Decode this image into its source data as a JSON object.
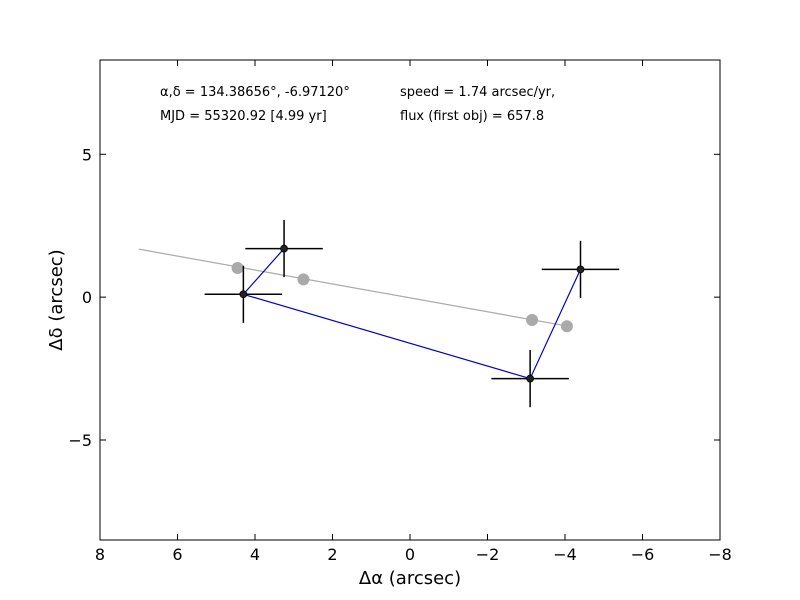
{
  "chart_data": {
    "type": "scatter",
    "xlabel": "Δα (arcsec)",
    "ylabel": "Δδ (arcsec)",
    "xlim": [
      8,
      -8
    ],
    "ylim": [
      -8.5,
      8.3
    ],
    "x_ticks": [
      8,
      6,
      4,
      2,
      0,
      -2,
      -4,
      -6,
      -8
    ],
    "x_tick_labels": [
      "8",
      "6",
      "4",
      "2",
      "0",
      "−2",
      "−4",
      "−6",
      "−8"
    ],
    "y_ticks": [
      5,
      0,
      -5
    ],
    "y_tick_labels": [
      "5",
      "0",
      "−5"
    ],
    "grid": false,
    "annotations": [
      "α,δ = 134.38656°, -6.97120°",
      "MJD = 55320.92 [4.99 yr]",
      "speed = 1.74 arcsec/yr,",
      "flux (first obj) = 657.8"
    ],
    "model_line": {
      "color": "#aaaaaa",
      "x": [
        7.0,
        -4.0
      ],
      "y": [
        1.68,
        -1.0
      ]
    },
    "model_points": {
      "color": "#aaaaaa",
      "x": [
        4.45,
        2.75,
        -3.15,
        -4.05
      ],
      "y": [
        1.02,
        0.62,
        -0.8,
        -1.02
      ]
    },
    "observed_path": {
      "color": "#0000cc",
      "x": [
        3.25,
        4.3,
        -3.1,
        -4.4
      ],
      "y": [
        1.7,
        0.1,
        -2.85,
        0.97
      ]
    },
    "observed_points": {
      "color": "#222222",
      "x": [
        3.25,
        4.3,
        -3.1,
        -4.4
      ],
      "y": [
        1.7,
        0.1,
        -2.85,
        0.97
      ],
      "x_err": [
        1.0,
        1.0,
        1.0,
        1.0
      ],
      "y_err": [
        1.0,
        1.0,
        1.0,
        1.0
      ]
    }
  }
}
